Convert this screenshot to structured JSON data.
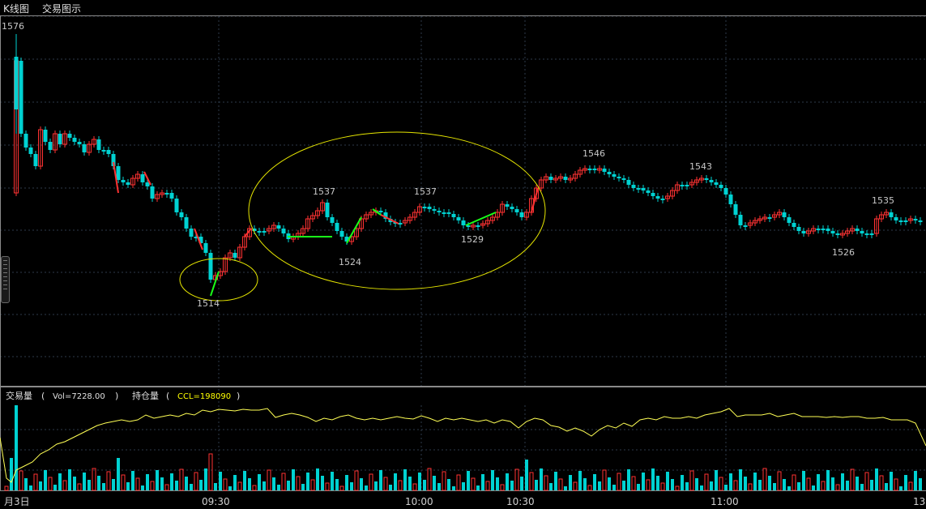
{
  "tabs": [
    {
      "label": "K线图"
    },
    {
      "label": "交易图示"
    }
  ],
  "colors": {
    "up": "#ff3232",
    "down": "#00d2d2",
    "grid": "#2e3a4a",
    "ellipse": "#e6e600",
    "green_line": "#19ff19",
    "ccl_line": "#ffff55",
    "frame": "#8a8a8a"
  },
  "price_axis": {
    "top_label": "1576"
  },
  "annotations": [
    {
      "text": "1514"
    },
    {
      "text": "1537"
    },
    {
      "text": "1524"
    },
    {
      "text": "1537"
    },
    {
      "text": "1529"
    },
    {
      "text": "1546"
    },
    {
      "text": "1543"
    },
    {
      "text": "1526"
    },
    {
      "text": "1535"
    }
  ],
  "volume_panel": {
    "label": "交易量",
    "paren_open": "(",
    "vol_text": "Vol=7228.00",
    "paren_close": ")",
    "ccl_label": "持仓量",
    "ccl_paren_open": "(",
    "ccl_text": "CCL=198090",
    "ccl_paren_close": ")"
  },
  "time_axis": {
    "labels": [
      "月3日",
      "09:30",
      "10:00",
      "10:30",
      "11:00",
      "13"
    ]
  },
  "chart_data": {
    "type": "candlestick",
    "x_labels": [
      "月3日",
      "09:30",
      "10:00",
      "10:30",
      "11:00",
      "13"
    ],
    "price_annotations": [
      1576,
      1514,
      1537,
      1524,
      1537,
      1529,
      1546,
      1543,
      1526,
      1535
    ],
    "volume_indicator": {
      "Vol": 7228.0
    },
    "open_interest_indicator": {
      "CCL": 198090
    }
  }
}
